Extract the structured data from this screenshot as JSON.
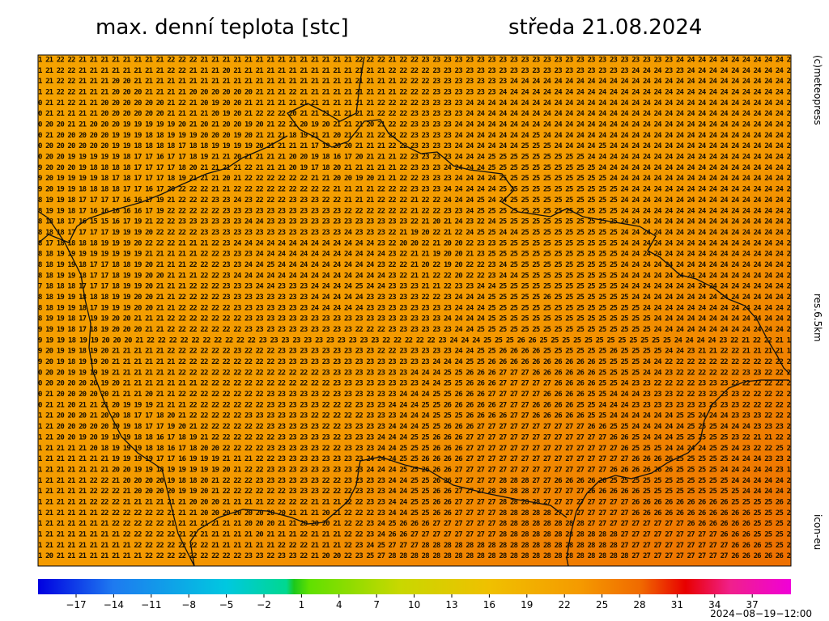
{
  "header": {
    "title": "max. denní teplota [stc]",
    "date": "středa 21.08.2024"
  },
  "side_labels": {
    "copyright": "(c)meteopress",
    "resolution": "res.6.5km",
    "model": "icon-eu"
  },
  "map": {
    "rows": [
      "1 21 22 22 21 21 21 21 21 21 21 21 22 22 22 21 21 21 21 21 21 21 21 21 21 21 21 21 21 22 22 22 21 22 22 23 23 23 23 23 23 23 23 23 23 23 23 23 23 23 23 23 23 23 23 23 23 23 24 24 24 24 24 24 24 24 24 24 2",
      "1 21 22 22 21 21 21 21 21 21 21 21 22 22 21 21 21 20 21 21 21 21 21 21 21 21 21 21 21 21 21 21 22 22 22 22 23 23 23 23 23 23 23 23 23 23 23 23 23 23 23 23 23 23 24 24 24 23 23 24 24 24 24 24 24 24 24 24 2",
      "1 21 22 22 21 21 21 20 20 21 21 21 21 21 21 21 21 21 21 21 21 21 21 21 21 21 21 21 21 21 21 21 21 22 22 22 23 23 23 23 23 23 23 24 24 24 24 24 24 24 24 24 24 24 24 24 24 24 24 24 24 24 24 24 24 24 24 24 2",
      "1 21 22 22 21 21 21 20 20 20 21 21 21 21 20 20 20 20 20 20 21 21 21 22 21 21 21 21 21 21 21 21 21 22 22 22 23 23 23 23 23 23 24 24 24 24 24 24 24 24 24 24 24 24 24 24 24 24 24 24 24 24 24 24 24 24 24 24 2",
      "0 21 21 22 21 21 20 20 20 20 20 20 21 22 21 20 19 20 20 21 21 21 21 21 21 21 21 21 21 21 21 22 22 22 22 23 23 23 23 24 24 24 24 24 24 24 24 24 24 24 24 24 24 24 24 24 24 24 24 24 24 24 24 24 24 24 24 24 2",
      "0 21 21 21 21 21 20 20 20 20 20 20 21 21 21 21 20 19 20 21 22 22 22 20 21 21 21 21 21 21 21 22 22 22 23 23 23 23 23 24 24 24 24 24 24 24 24 24 24 24 24 24 24 24 24 24 24 24 24 24 24 24 24 24 24 24 24 24 2",
      "0 20 20 21 21 20 20 20 19 19 19 19 19 20 21 20 21 20 20 19 20 21 22 21 20 19 20 21 21 21 20 21 22 22 23 23 23 23 24 24 24 24 24 24 24 24 24 24 24 24 24 24 24 24 24 24 24 24 24 24 24 24 24 24 24 24 24 24 2",
      "0 21 20 20 20 20 20 19 19 19 18 18 19 19 19 20 20 20 19 20 21 21 21 18 19 21 21 20 21 21 21 22 22 22 23 23 23 23 24 24 24 24 24 24 24 25 24 24 24 24 24 24 24 24 24 24 24 24 24 24 24 24 24 24 24 24 24 24 2",
      "0 20 20 20 20 20 20 19 19 18 18 18 18 17 18 18 19 19 19 19 20 21 21 21 21 17 19 20 20 21 21 21 22 22 23 23 23 23 24 24 24 24 24 24 25 25 25 24 24 24 24 25 24 24 24 24 24 24 24 24 24 24 24 24 24 24 24 24 2",
      "0 20 20 19 19 19 19 19 18 17 17 16 17 17 18 19 21 21 20 21 21 21 21 20 20 19 18 16 17 20 21 21 21 22 23 23 23 23 24 24 24 25 25 25 25 25 25 25 25 25 24 24 24 24 24 24 24 24 24 24 24 24 24 24 24 24 24 24 2",
      "9 20 20 20 19 18 18 18 18 17 17 17 17 18 20 21 21 21 21 22 21 21 21 20 19 17 18 20 21 21 21 21 21 22 23 23 23 24 24 24 24 25 25 25 25 25 25 25 25 25 25 24 24 24 24 24 24 24 24 24 24 24 24 24 24 24 24 24 2",
      "9 20 19 19 19 19 18 17 18 17 17 17 18 19 21 21 21 20 21 22 22 22 22 22 22 21 21 20 20 19 20 21 21 22 22 23 23 23 24 24 24 24 25 25 25 25 25 25 25 25 25 25 24 24 24 24 24 24 24 24 24 24 24 24 24 24 24 24 2",
      "9 20 19 19 18 18 18 18 17 17 16 17 20 22 22 22 21 21 22 22 22 22 22 22 22 22 22 21 21 21 21 22 22 22 23 23 23 24 24 24 24 24 25 25 25 25 25 25 25 25 25 25 25 24 24 24 24 24 24 24 24 24 24 24 24 24 24 24 2",
      "8 19 19 18 17 17 17 17 16 16 17 19 21 22 22 22 23 23 24 23 22 22 22 23 23 23 22 22 21 21 21 22 22 22 21 22 22 24 24 24 25 24 24 25 25 25 25 25 25 25 25 25 25 24 24 24 24 24 24 24 24 24 24 24 24 24 24 24 2",
      "8 19 19 18 17 16 16 16 16 16 17 19 22 22 22 22 22 23 23 23 23 23 23 23 23 23 23 23 22 22 22 22 22 22 21 22 22 23 23 24 25 25 25 25 25 25 25 25 25 25 25 25 25 24 24 24 24 24 24 24 24 24 24 24 24 24 24 24 2",
      "8 18 18 17 16 15 15 16 17 19 21 22 22 23 23 23 23 23 23 24 24 23 23 23 23 23 23 23 23 23 23 23 23 23 22 21 20 21 24 23 22 24 25 25 25 25 25 25 25 25 25 25 25 24 24 24 24 24 24 24 24 24 24 24 24 24 24 24 2",
      "8 18 18 17 17 17 17 19 19 19 20 22 22 22 22 23 23 23 23 23 23 23 23 23 23 23 23 23 24 23 23 23 22 21 19 20 22 21 22 24 25 25 24 24 25 25 25 25 25 25 25 25 25 24 24 24 24 24 24 24 24 24 24 24 24 24 24 24 2",
      "8 17 18 18 18 18 19 19 19 20 22 22 22 21 21 21 22 23 24 24 24 24 24 24 24 24 24 24 24 24 24 23 22 20 20 22 21 20 20 22 23 23 25 25 25 25 25 25 25 25 25 25 25 24 24 24 24 24 24 24 24 24 24 24 24 24 24 24 2",
      "8 18 19 19 19 19 19 19 19 19 21 21 21 21 21 22 22 23 23 23 24 24 24 24 24 24 24 24 24 24 24 24 23 22 21 21 19 20 20 21 23 25 25 25 25 25 25 25 25 25 25 25 25 24 24 24 24 24 24 24 24 24 24 24 24 24 24 24 2",
      "8 18 19 19 18 17 17 18 18 19 20 21 21 21 22 22 22 23 23 24 24 25 24 24 24 24 24 24 24 24 24 23 22 22 21 20 22 19 20 22 22 23 24 25 25 25 25 25 25 25 25 25 25 24 24 24 24 24 24 24 24 24 24 24 24 24 24 24 2",
      "8 18 19 19 18 17 17 18 19 19 20 20 21 21 21 22 22 23 24 24 24 24 24 24 24 24 24 24 24 24 24 24 23 22 21 21 22 22 20 22 22 23 24 24 25 25 25 25 25 25 25 25 25 24 24 24 24 24 24 24 24 24 24 24 24 24 24 24 2",
      "7 18 18 18 17 17 17 18 19 19 20 21 21 21 22 22 22 23 23 23 24 24 23 23 23 24 24 24 24 25 24 24 23 23 23 21 21 22 23 23 24 24 25 25 25 25 25 25 25 25 25 25 25 24 24 24 24 24 24 24 24 24 24 24 24 24 24 24 2",
      "8 18 19 19 18 18 18 19 19 20 20 21 21 22 22 22 22 23 23 23 23 23 23 23 23 24 24 24 24 24 23 23 23 23 23 22 22 23 24 24 24 25 25 25 25 25 26 25 25 25 25 25 25 25 24 24 24 24 24 24 24 24 24 24 24 24 24 24 2",
      "8 18 19 19 18 17 19 19 19 20 20 21 21 22 22 22 22 22 23 23 23 23 23 23 23 24 24 24 24 24 23 23 23 23 23 23 23 23 24 24 24 25 25 25 25 25 25 25 25 25 25 25 25 25 25 24 24 24 24 24 24 24 24 24 24 24 24 24 2",
      "8 19 19 18 17 19 19 20 20 21 21 21 22 22 22 22 22 22 22 23 23 23 23 23 23 23 23 23 23 23 23 23 23 23 23 23 23 24 24 24 24 25 25 25 25 25 25 25 25 25 25 25 25 25 25 25 24 24 24 24 24 24 24 24 24 24 24 24 2",
      "9 19 19 18 17 18 19 20 20 20 21 21 22 22 22 22 22 22 22 23 23 23 23 23 23 23 23 23 23 22 22 22 23 23 23 23 23 23 24 24 25 25 25 25 25 25 25 25 25 25 25 25 25 25 25 25 24 24 24 24 24 24 24 24 24 24 24 24 2",
      "9 19 19 18 19 19 20 20 20 21 22 22 22 22 22 22 22 22 22 22 23 23 23 23 23 23 23 23 23 23 23 22 22 22 22 22 23 24 24 24 25 25 25 26 26 25 25 25 25 25 25 25 25 25 25 25 25 24 24 24 24 23 22 21 22 22 21 1",
      "9 20 19 19 18 19 20 21 21 21 21 21 22 22 22 22 22 22 23 22 22 22 23 23 23 23 23 23 23 23 23 22 22 23 23 23 23 23 24 24 25 25 26 26 26 26 25 25 25 25 25 25 26 25 25 25 25 24 24 23 21 21 22 22 21 21 21 21 1",
      "9 20 19 18 19 19 20 21 21 21 21 21 21 22 22 22 22 22 22 22 22 22 23 23 23 23 23 23 23 23 23 23 23 23 23 23 24 24 24 25 25 26 26 26 26 26 26 26 26 26 26 25 25 25 25 24 24 22 22 22 22 22 22 22 22 22 22 22 2",
      "0 20 20 19 19 19 19 21 21 21 21 21 21 22 22 22 22 22 22 22 22 22 22 22 22 22 23 23 23 23 23 23 23 23 24 24 24 25 25 26 26 26 27 27 27 26 26 26 26 26 26 25 25 25 25 24 24 23 22 22 22 22 22 22 23 23 22 22 2",
      "0 20 20 20 20 20 19 20 21 21 21 21 21 21 21 22 22 22 22 22 22 22 22 22 22 22 22 23 23 23 23 23 23 23 23 24 24 25 25 26 26 26 27 27 27 27 27 26 26 26 26 25 25 24 23 23 22 22 22 22 23 23 23 22 22 22 22 22 2",
      "0 21 20 20 20 20 20 21 21 21 20 21 21 22 22 22 22 22 22 22 22 23 23 23 23 23 22 23 23 23 23 23 23 24 24 24 25 25 26 26 26 27 27 27 27 27 26 26 26 26 25 25 24 24 24 23 23 23 22 22 23 23 23 23 22 22 22 22 2",
      "0 21 21 20 21 21 21 20 19 19 19 21 21 21 22 22 22 22 22 22 22 23 23 23 23 23 22 22 22 23 23 23 24 24 24 25 25 26 26 26 26 26 27 27 27 26 26 26 26 25 25 24 24 24 23 23 23 23 23 23 23 23 23 23 22 22 22 22 2",
      "1 21 20 20 20 21 20 20 18 17 17 18 20 21 22 22 22 22 22 23 23 23 23 23 23 22 22 22 22 22 23 23 23 24 24 24 25 25 25 26 26 26 26 27 27 26 26 26 26 26 25 25 24 24 24 24 24 24 25 25 24 24 24 23 23 23 22 22 2",
      "1 21 20 20 20 20 20 19 19 18 17 17 19 20 21 22 22 22 22 22 22 23 23 23 23 23 22 22 23 23 23 23 24 24 24 25 25 26 26 26 27 27 27 27 27 27 27 27 27 27 26 26 25 25 24 24 24 24 24 25 25 25 24 24 24 23 23 23 2",
      "1 21 20 20 19 20 19 19 19 18 18 16 17 18 19 21 22 22 22 22 22 22 23 23 23 23 23 22 23 23 23 24 24 24 25 25 26 26 26 27 27 27 27 27 27 27 27 27 27 27 27 27 26 26 25 24 24 24 25 25 25 25 25 23 22 21 21 22 2",
      "1 21 21 21 21 20 18 19 19 19 18 18 16 17 18 20 20 22 22 22 22 23 23 23 23 23 22 22 23 23 23 24 24 25 25 25 26 26 26 27 27 27 27 27 27 27 27 27 27 27 27 27 27 26 25 25 25 24 24 24 24 25 25 24 23 22 22 25 2",
      "1 21 21 21 21 21 21 19 19 19 19 17 17 16 19 19 19 21 21 21 22 22 23 23 23 23 23 23 23 23 24 24 24 25 25 26 26 26 26 27 27 27 27 27 27 27 27 27 27 27 27 27 27 27 26 26 26 26 25 25 25 25 25 24 24 24 23 23 2",
      "1 21 21 21 21 21 21 20 20 19 19 18 19 19 19 19 19 20 21 22 22 23 23 23 23 23 23 23 23 23 24 24 24 25 25 26 26 26 27 27 27 27 27 27 27 27 27 27 27 27 27 27 26 26 26 26 26 26 25 25 25 25 24 24 24 24 24 23 1",
      "1 21 21 21 21 22 22 21 20 20 20 20 19 18 18 20 21 22 22 22 23 23 23 23 23 23 22 22 23 23 23 23 24 24 25 25 26 26 27 27 27 27 28 28 28 27 27 26 26 26 26 26 25 25 25 25 25 25 25 25 25 25 25 24 24 24 24 24 2",
      "1 21 21 21 21 22 22 22 21 20 20 20 20 19 19 20 21 22 22 22 22 22 22 23 23 23 22 22 22 23 23 23 24 24 25 25 26 26 27 27 27 28 28 28 28 27 27 27 27 27 26 26 26 26 26 25 25 25 25 25 25 25 25 25 24 24 24 24 2",
      "1 21 21 21 21 22 22 22 21 21 21 21 21 21 20 20 20 21 21 21 21 22 22 22 22 21 21 21 22 22 23 23 24 24 25 25 26 26 27 27 27 27 28 28 28 28 27 27 27 27 27 27 27 27 26 26 26 26 26 26 26 26 26 25 25 25 25 26 2",
      "1 21 21 21 21 21 22 22 22 22 22 22 21 21 21 20 20 20 20 20 20 20 20 21 21 21 20 21 22 22 22 23 24 24 25 25 26 26 27 27 27 27 28 28 28 28 28 27 27 27 27 27 27 27 26 26 26 26 26 26 26 26 26 26 26 25 25 25 2",
      "1 21 21 21 21 21 21 22 22 22 22 22 21 21 21 21 21 21 21 20 20 20 21 21 20 20 20 21 22 22 23 24 25 26 26 26 27 27 27 27 27 27 28 28 28 28 28 28 28 28 27 27 27 27 27 27 27 27 27 26 26 26 26 26 26 25 25 25 2",
      "1 21 21 21 21 21 21 21 22 22 22 22 22 21 21 21 21 21 21 21 20 21 21 21 22 21 21 21 22 22 23 24 26 26 27 27 27 27 27 27 27 27 28 28 28 28 28 28 28 28 28 28 28 27 27 27 27 27 27 27 27 27 26 26 26 25 25 25 2",
      "1 21 21 21 21 21 21 21 21 22 22 22 22 22 22 22 21 21 21 21 21 21 22 22 22 21 21 21 22 23 24 25 27 27 27 28 28 28 28 28 28 28 28 28 28 28 28 28 28 28 28 28 28 27 27 27 27 27 27 27 27 27 27 26 26 26 25 25 2",
      "1 20 21 21 21 21 21 21 21 21 22 22 22 22 22 22 22 22 22 23 23 22 23 23 22 21 20 20 22 23 25 27 28 28 28 28 28 28 28 28 28 28 28 28 28 28 28 28 28 28 28 28 28 28 27 27 27 27 27 27 27 27 27 26 26 26 26 26 2"
    ]
  },
  "colorbar": {
    "ticks": [
      "−17",
      "−14",
      "−11",
      "−8",
      "−5",
      "−2",
      "1",
      "4",
      "7",
      "10",
      "13",
      "16",
      "19",
      "22",
      "25",
      "28",
      "31",
      "34",
      "37"
    ]
  },
  "footer": {
    "timestamp": "2024−08−19−12:00"
  }
}
